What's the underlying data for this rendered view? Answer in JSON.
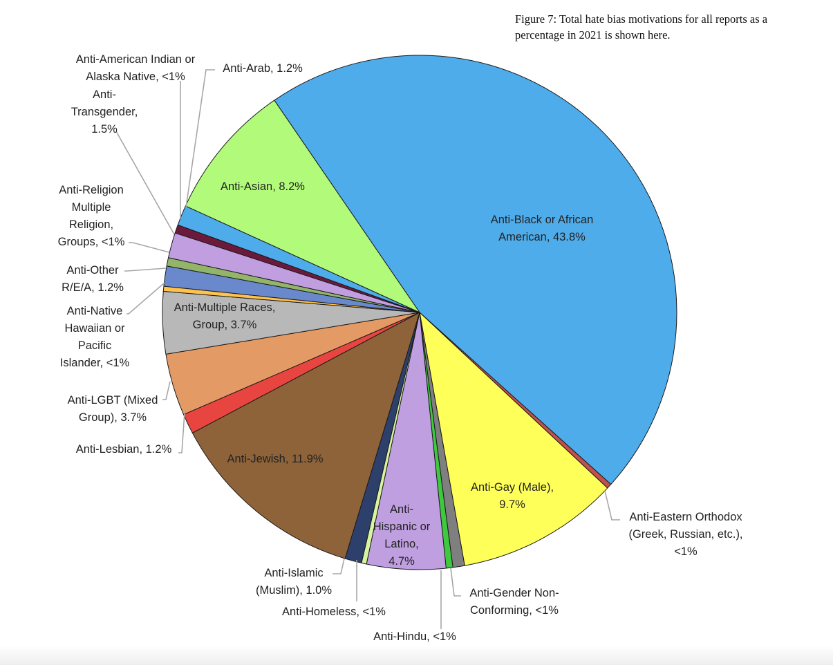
{
  "caption": "Figure 7: Total hate bias motivations for all reports as a percentage in 2021 is shown here.",
  "chart_data": {
    "type": "pie",
    "title": "Figure 7: Total hate bias motivations for all reports as a percentage in 2021 is shown here.",
    "unit": "percent",
    "slices": [
      {
        "key": "anti-black",
        "name": "Anti-Black or African American",
        "value": 43.8,
        "label": [
          "Anti-Black or African",
          "American, 43.8%"
        ],
        "color": "#4facea"
      },
      {
        "key": "anti-eastern-orthodox",
        "name": "Anti-Eastern Orthodox (Greek, Russian, etc.)",
        "value": 0.3,
        "label": [
          "Anti-Eastern Orthodox",
          "(Greek, Russian, etc.),",
          "<1%"
        ],
        "color": "#c0504d"
      },
      {
        "key": "anti-gay-male",
        "name": "Anti-Gay (Male)",
        "value": 9.7,
        "label": [
          "Anti-Gay (Male),",
          "9.7%"
        ],
        "color": "#ffff5a"
      },
      {
        "key": "anti-gender-non-conforming",
        "name": "Anti-Gender Non-Conforming",
        "value": 0.7,
        "label": [
          "Anti-Gender Non-",
          "Conforming, <1%"
        ],
        "color": "#7f7f7f"
      },
      {
        "key": "anti-hindu",
        "name": "Anti-Hindu",
        "value": 0.4,
        "label": [
          "Anti-Hindu, <1%"
        ],
        "color": "#3ec93e"
      },
      {
        "key": "anti-hispanic",
        "name": "Anti-Hispanic or Latino",
        "value": 4.7,
        "label": [
          "Anti-",
          "Hispanic or",
          "Latino,",
          "4.7%"
        ],
        "color": "#bf9fe0"
      },
      {
        "key": "anti-homeless",
        "name": "Anti-Homeless",
        "value": 0.3,
        "label": [
          "Anti-Homeless, <1%"
        ],
        "color": "#d7f5a0"
      },
      {
        "key": "anti-islamic",
        "name": "Anti-Islamic (Muslim)",
        "value": 1.0,
        "label": [
          "Anti-Islamic",
          "(Muslim), 1.0%"
        ],
        "color": "#2d3f6b"
      },
      {
        "key": "anti-jewish",
        "name": "Anti-Jewish",
        "value": 11.9,
        "label": [
          "Anti-Jewish, 11.9%"
        ],
        "color": "#8e6339"
      },
      {
        "key": "anti-lesbian",
        "name": "Anti-Lesbian",
        "value": 1.2,
        "label": [
          "Anti-Lesbian, 1.2%"
        ],
        "color": "#e84540"
      },
      {
        "key": "anti-lgbt",
        "name": "Anti-LGBT (Mixed Group)",
        "value": 3.7,
        "label": [
          "Anti-LGBT (Mixed",
          "Group), 3.7%"
        ],
        "color": "#e49a65"
      },
      {
        "key": "anti-multiple-races",
        "name": "Anti-Multiple Races, Group",
        "value": 3.7,
        "label": [
          "Anti-Multiple Races,",
          "Group, 3.7%"
        ],
        "color": "#b8b8b8"
      },
      {
        "key": "anti-native-hawaiian",
        "name": "Anti-Native Hawaiian or Pacific Islander",
        "value": 0.3,
        "label": [
          "Anti-Native",
          "Hawaiian or",
          "Pacific",
          "Islander, <1%"
        ],
        "color": "#ffc24d"
      },
      {
        "key": "anti-other-rea",
        "name": "Anti-Other R/E/A",
        "value": 1.2,
        "label": [
          "Anti-Other",
          "R/E/A, 1.2%"
        ],
        "color": "#6a89cc"
      },
      {
        "key": "anti-religion-multiple",
        "name": "Anti-Religion Multiple Religion, Groups",
        "value": 0.5,
        "label": [
          "Anti-Religion",
          "Multiple",
          "Religion,",
          "Groups, <1%"
        ],
        "color": "#92b56a"
      },
      {
        "key": "anti-transgender",
        "name": "Anti-Transgender",
        "value": 1.5,
        "label": [
          "Anti-",
          "Transgender,",
          "1.5%"
        ],
        "color": "#c19ee0"
      },
      {
        "key": "anti-american-indian",
        "name": "Anti-American Indian or Alaska Native",
        "value": 0.5,
        "label": [
          "Anti-American Indian or",
          "Alaska Native, <1%"
        ],
        "color": "#6b1a3c"
      },
      {
        "key": "anti-arab",
        "name": "Anti-Arab",
        "value": 1.2,
        "label": [
          "Anti-Arab, 1.2%"
        ],
        "color": "#4facea"
      },
      {
        "key": "anti-asian",
        "name": "Anti-Asian",
        "value": 8.2,
        "label": [
          "Anti-Asian, 8.2%"
        ],
        "color": "#b2fb7a"
      }
    ]
  }
}
